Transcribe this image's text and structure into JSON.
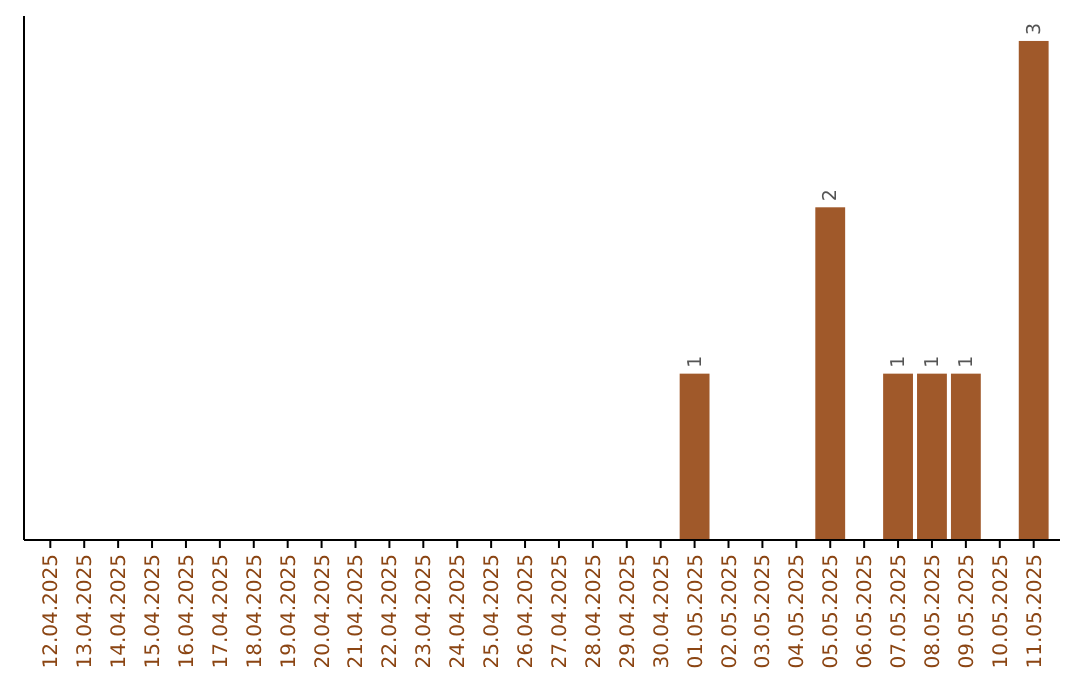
{
  "chart_data": {
    "type": "bar",
    "categories": [
      "12.04.2025",
      "13.04.2025",
      "14.04.2025",
      "15.04.2025",
      "16.04.2025",
      "17.04.2025",
      "18.04.2025",
      "19.04.2025",
      "20.04.2025",
      "21.04.2025",
      "22.04.2025",
      "23.04.2025",
      "24.04.2025",
      "25.04.2025",
      "26.04.2025",
      "27.04.2025",
      "28.04.2025",
      "29.04.2025",
      "30.04.2025",
      "01.05.2025",
      "02.05.2025",
      "03.05.2025",
      "04.05.2025",
      "05.05.2025",
      "06.05.2025",
      "07.05.2025",
      "08.05.2025",
      "09.05.2025",
      "10.05.2025",
      "11.05.2025"
    ],
    "values": [
      null,
      null,
      null,
      null,
      null,
      null,
      null,
      null,
      null,
      null,
      null,
      null,
      null,
      null,
      null,
      null,
      null,
      null,
      null,
      1,
      null,
      null,
      null,
      2,
      null,
      1,
      1,
      1,
      null,
      3
    ],
    "data_labels": true,
    "color": "#a0592a"
  }
}
